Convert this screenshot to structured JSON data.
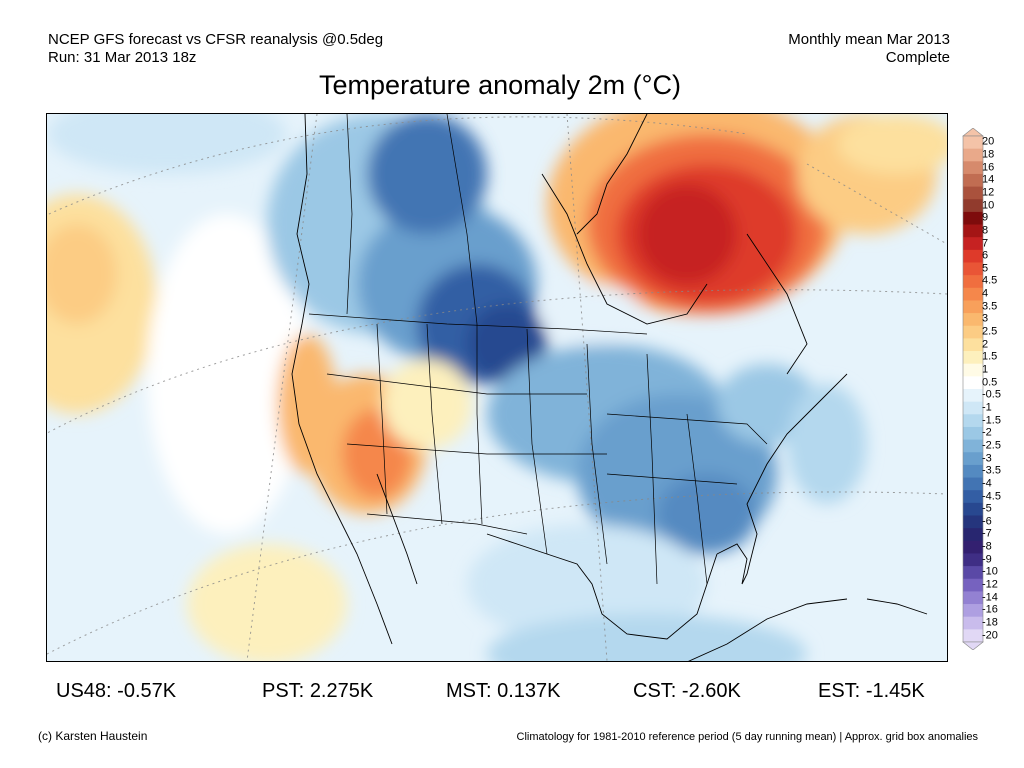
{
  "header": {
    "source_line": "NCEP GFS forecast vs CFSR reanalysis @0.5deg",
    "run_line": "Run: 31 Mar 2013 18z",
    "period_line": "Monthly mean Mar 2013",
    "status_line": "Complete"
  },
  "title": "Temperature anomaly 2m (°C)",
  "colorbar": {
    "labels": [
      "20",
      "18",
      "16",
      "14",
      "12",
      "10",
      "9",
      "8",
      "7",
      "6",
      "5",
      "4.5",
      "4",
      "3.5",
      "3",
      "2.5",
      "2",
      "1.5",
      "1",
      "0.5",
      "-0.5",
      "-1",
      "-1.5",
      "-2",
      "-2.5",
      "-3",
      "-3.5",
      "-4",
      "-4.5",
      "-5",
      "-6",
      "-7",
      "-8",
      "-9",
      "-10",
      "-12",
      "-14",
      "-16",
      "-18",
      "-20"
    ],
    "colors": [
      "#f4c3a8",
      "#e9a98a",
      "#d68a6c",
      "#c16d52",
      "#aa523d",
      "#913b2d",
      "#7e0c0c",
      "#a41515",
      "#c62222",
      "#de3a2a",
      "#e95536",
      "#f06e3f",
      "#f5874b",
      "#f8a05b",
      "#fab86e",
      "#fccc84",
      "#fde09e",
      "#fdf0bd",
      "#fffbe6",
      "#ffffff",
      "#e6f3fb",
      "#cfe7f6",
      "#b4d8ee",
      "#9bc8e5",
      "#80b3d9",
      "#699fcd",
      "#548ac1",
      "#4274b3",
      "#335ea4",
      "#284890",
      "#25357d",
      "#282670",
      "#332070",
      "#3f2e85",
      "#5a49a6",
      "#7662bf",
      "#9381d2",
      "#ae9fe1",
      "#c9bcec",
      "#e1d8f5"
    ]
  },
  "stats": [
    {
      "label": "US48:",
      "value": "-0.57K"
    },
    {
      "label": "PST:",
      "value": "2.275K"
    },
    {
      "label": "MST:",
      "value": "0.137K"
    },
    {
      "label": "CST:",
      "value": "-2.60K"
    },
    {
      "label": "EST:",
      "value": "-1.45K"
    }
  ],
  "footer": {
    "credit": "(c) Karsten Haustein",
    "note": "Climatology for 1981-2010 reference period (5 day running mean) | Approx. grid box anomalies"
  }
}
